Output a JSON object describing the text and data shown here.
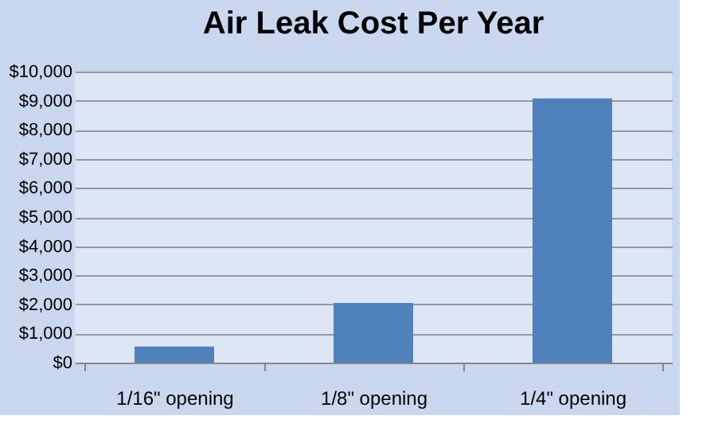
{
  "chart_data": {
    "type": "bar",
    "title": "Air Leak Cost Per Year",
    "categories": [
      "1/16\" opening",
      "1/8\" opening",
      "1/4\" opening"
    ],
    "values": [
      550,
      2050,
      9080
    ],
    "color": "#4f81bd",
    "ylim": [
      0,
      10000
    ],
    "yticks": [
      {
        "value": 0,
        "label": "$0"
      },
      {
        "value": 1000,
        "label": "$1,000"
      },
      {
        "value": 2000,
        "label": "$2,000"
      },
      {
        "value": 3000,
        "label": "$3,000"
      },
      {
        "value": 4000,
        "label": "$4,000"
      },
      {
        "value": 5000,
        "label": "$5,000"
      },
      {
        "value": 6000,
        "label": "$6,000"
      },
      {
        "value": 7000,
        "label": "$7,000"
      },
      {
        "value": 8000,
        "label": "$8,000"
      },
      {
        "value": 9000,
        "label": "$9,000"
      },
      {
        "value": 10000,
        "label": "$10,000"
      }
    ],
    "grid": "y"
  }
}
